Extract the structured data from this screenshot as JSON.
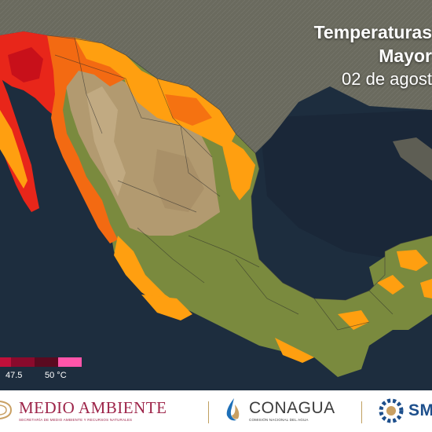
{
  "title": {
    "line1": "Temperaturas",
    "line2": "Mayor",
    "line3": "02 de agost"
  },
  "legend": {
    "labels": [
      "47.5",
      "50 °C"
    ],
    "colors": [
      "#c0103a",
      "#8a0a2c",
      "#5a0a20",
      "#ff55aa"
    ]
  },
  "footer": {
    "medio_ambiente": "MEDIO AMBIENTE",
    "medio_ambiente_sub": "SECRETARÍA DE MEDIO AMBIENTE Y RECURSOS NATURALES",
    "conagua": "CONAGUA",
    "conagua_sub": "COMISIÓN NACIONAL DEL AGUA",
    "smn": "SM"
  },
  "colors": {
    "ocean": "#1d2d3e",
    "land_north": "#6a6a5e",
    "land_plateau": "#b29a70",
    "land_green": "#7a8a3e",
    "temp_orange": "#ff9f10",
    "temp_darkorange": "#f36a12",
    "temp_red": "#e8261a",
    "brand_wine": "#9d2449"
  }
}
